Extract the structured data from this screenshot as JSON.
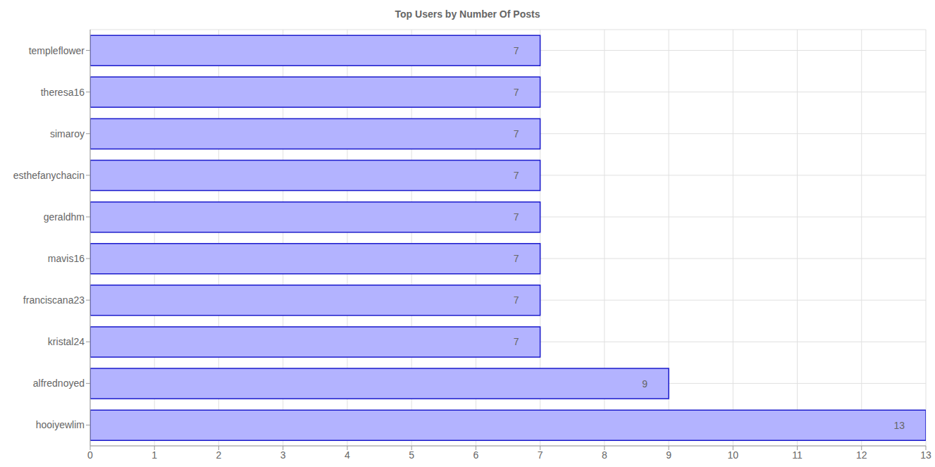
{
  "chart_data": {
    "type": "bar",
    "title": "Top Users by Number Of Posts",
    "orientation": "horizontal",
    "categories": [
      "templeflower",
      "theresa16",
      "simaroy",
      "esthefanychacin",
      "geraldhm",
      "mavis16",
      "franciscana23",
      "kristal24",
      "alfrednoyed",
      "hooiyewlim"
    ],
    "values": [
      7,
      7,
      7,
      7,
      7,
      7,
      7,
      7,
      9,
      13
    ],
    "color": "#b3b3ff",
    "xlim": [
      0,
      13
    ],
    "xticks": [
      0,
      1,
      2,
      3,
      4,
      5,
      6,
      7,
      8,
      9,
      10,
      11,
      12,
      13
    ],
    "grid": true,
    "data_labels": true
  }
}
